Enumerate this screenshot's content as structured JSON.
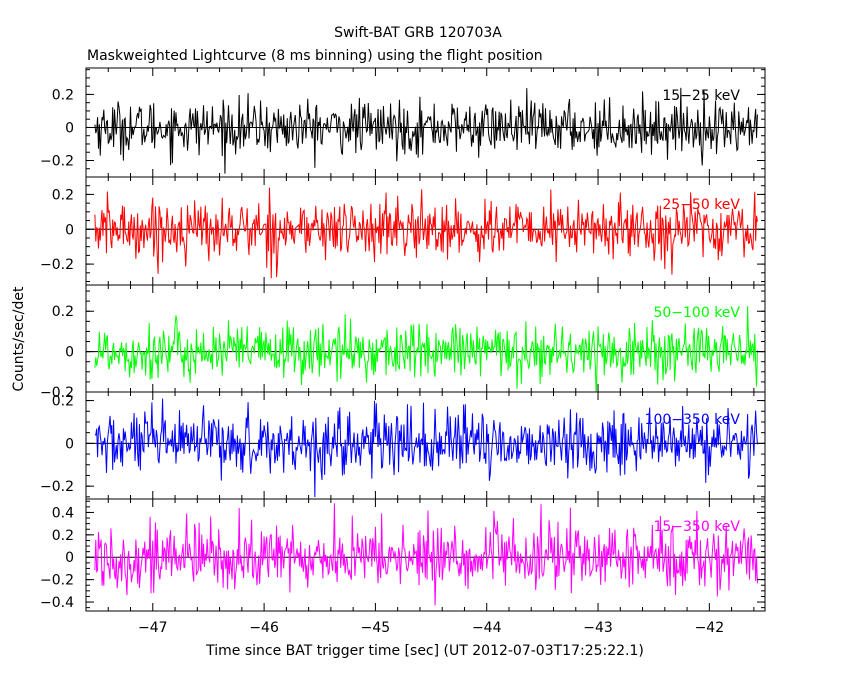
{
  "title": "Swift-BAT GRB 120703A",
  "subtitle": "Maskweighted Lightcurve (8 ms binning) using the flight position",
  "xlabel": "Time since BAT trigger time [sec] (UT 2012-07-03T17:25:22.1)",
  "ylabel": "Counts/sec/det",
  "chart_data": {
    "type": "line",
    "x_range": [
      -47.52,
      -41.56
    ],
    "xlim": [
      -47.6,
      -41.5
    ],
    "bin_width_s": 0.008,
    "x_ticks": [
      -47,
      -46,
      -45,
      -44,
      -43,
      -42
    ],
    "x_tick_labels": [
      "−47",
      "−46",
      "−45",
      "−44",
      "−43",
      "−42"
    ],
    "panels": [
      {
        "name": "15-25 keV",
        "label": "15−25 keV",
        "color": "#000000",
        "ylim": [
          -0.3,
          0.36
        ],
        "yticks": [
          -0.2,
          0,
          0.2
        ],
        "ytick_labels": [
          "−0.2",
          "0",
          "0.2"
        ],
        "mean": 0.0,
        "noise_sigma": 0.08
      },
      {
        "name": "25-50 keV",
        "label": "25−50 keV",
        "color": "#ff0000",
        "ylim": [
          -0.32,
          0.3
        ],
        "yticks": [
          -0.2,
          0,
          0.2
        ],
        "ytick_labels": [
          "−0.2",
          "0",
          "0.2"
        ],
        "mean": 0.0,
        "noise_sigma": 0.085
      },
      {
        "name": "50-100 keV",
        "label": "50−100 keV",
        "color": "#00ff00",
        "ylim": [
          -0.2,
          0.33
        ],
        "yticks": [
          -0.2,
          0,
          0.2
        ],
        "ytick_labels": [
          "−0.2",
          "0",
          "0.2"
        ],
        "mean": 0.0,
        "noise_sigma": 0.07
      },
      {
        "name": "100-350 keV",
        "label": "100−350 keV",
        "color": "#0000ff",
        "ylim": [
          -0.26,
          0.24
        ],
        "yticks": [
          -0.2,
          0,
          0.2
        ],
        "ytick_labels": [
          "−0.2",
          "0",
          "0.2"
        ],
        "mean": 0.0,
        "noise_sigma": 0.075
      },
      {
        "name": "15-350 keV",
        "label": "15−350 keV",
        "color": "#ff00ff",
        "ylim": [
          -0.48,
          0.52
        ],
        "yticks": [
          -0.4,
          -0.2,
          0,
          0.2,
          0.4
        ],
        "ytick_labels": [
          "−0.4",
          "−0.2",
          "0",
          "0.2",
          "0.4"
        ],
        "mean": 0.0,
        "noise_sigma": 0.15
      }
    ]
  }
}
